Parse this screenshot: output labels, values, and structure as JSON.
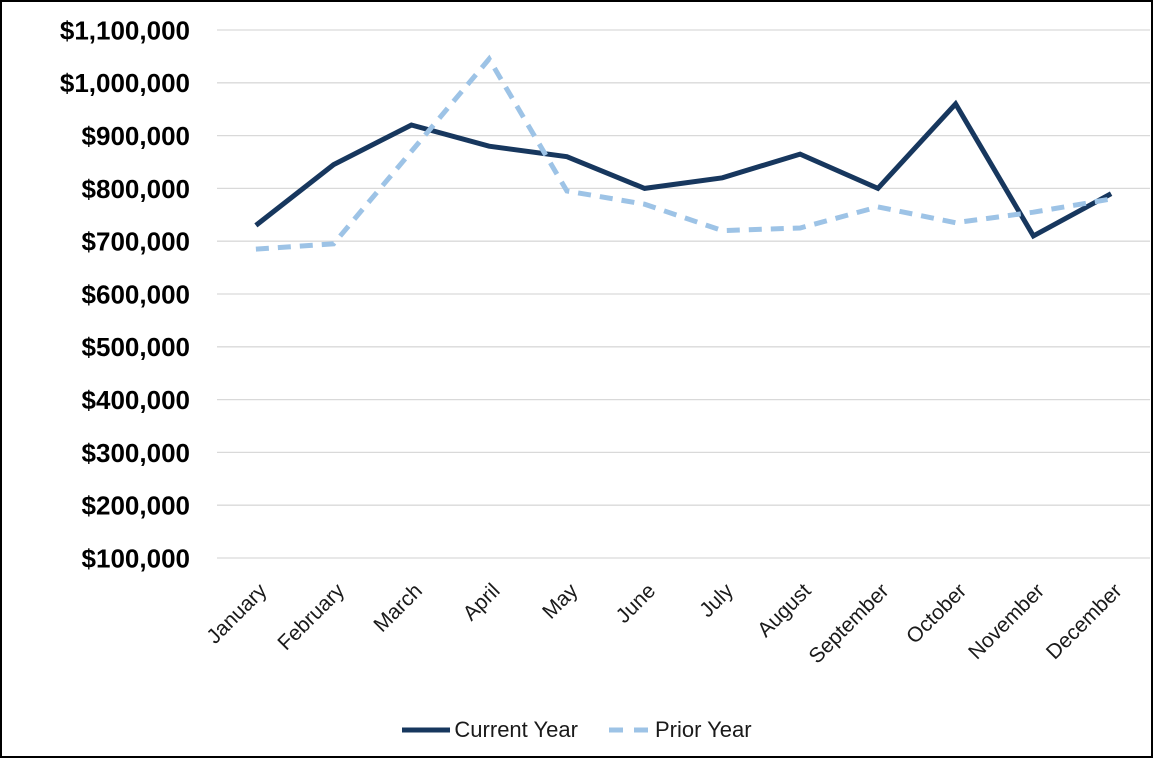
{
  "chart_data": {
    "type": "line",
    "title": "",
    "xlabel": "",
    "ylabel": "",
    "categories": [
      "January",
      "February",
      "March",
      "April",
      "May",
      "June",
      "July",
      "August",
      "September",
      "October",
      "November",
      "December"
    ],
    "series": [
      {
        "name": "Current Year",
        "style": "solid",
        "color": "#17375E",
        "values": [
          730000,
          845000,
          920000,
          880000,
          860000,
          800000,
          820000,
          865000,
          800000,
          960000,
          710000,
          790000
        ]
      },
      {
        "name": "Prior Year",
        "style": "dashed",
        "color": "#9DC3E6",
        "values": [
          685000,
          695000,
          870000,
          1045000,
          795000,
          770000,
          720000,
          725000,
          765000,
          735000,
          755000,
          780000
        ]
      }
    ],
    "ylim": [
      100000,
      1100000
    ],
    "ytick_step": 100000,
    "ytick_labels": [
      "$1,100,000",
      "$1,000,000",
      "$900,000",
      "$800,000",
      "$700,000",
      "$600,000",
      "$500,000",
      "$400,000",
      "$300,000",
      "$200,000",
      "$100,000"
    ],
    "grid": "horizontal-only",
    "gridline_color": "#D9D9D9",
    "legend_position": "bottom",
    "axis_text_color": "#1a1a1a",
    "ytick_text_color": "#000000"
  }
}
